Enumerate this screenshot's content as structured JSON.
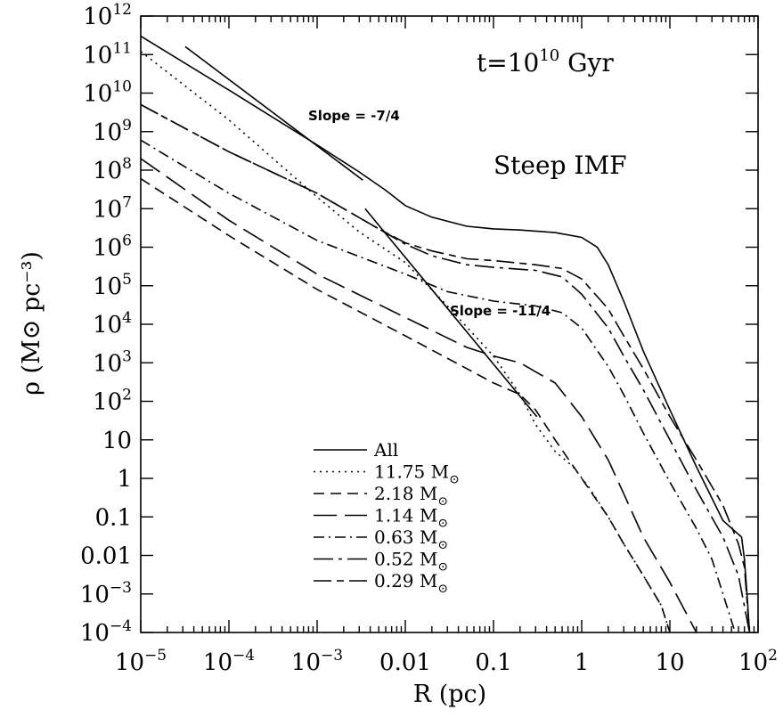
{
  "chart_data": {
    "type": "line",
    "xscale": "log",
    "yscale": "log",
    "xlim": [
      1e-05,
      100
    ],
    "ylim": [
      0.0001,
      1000000000000.0
    ],
    "xlabel": "R (pc)",
    "ylabel": "ρ (M⊙ pc⁻³)",
    "grid": false,
    "legend_position": "bottom-center",
    "xticks": [
      {
        "value": 1e-05,
        "base": "10",
        "exp": "−5"
      },
      {
        "value": 0.0001,
        "base": "10",
        "exp": "−4"
      },
      {
        "value": 0.001,
        "base": "10",
        "exp": "−3"
      },
      {
        "value": 0.01,
        "text": "0.01"
      },
      {
        "value": 0.1,
        "text": "0.1"
      },
      {
        "value": 1,
        "text": "1"
      },
      {
        "value": 10,
        "text": "10"
      },
      {
        "value": 100,
        "base": "10",
        "exp": "2"
      }
    ],
    "yticks": [
      {
        "value": 1000000000000.0,
        "base": "10",
        "exp": "12"
      },
      {
        "value": 100000000000.0,
        "base": "10",
        "exp": "11"
      },
      {
        "value": 10000000000.0,
        "base": "10",
        "exp": "10"
      },
      {
        "value": 1000000000.0,
        "base": "10",
        "exp": "9"
      },
      {
        "value": 100000000.0,
        "base": "10",
        "exp": "8"
      },
      {
        "value": 10000000.0,
        "base": "10",
        "exp": "7"
      },
      {
        "value": 1000000.0,
        "base": "10",
        "exp": "6"
      },
      {
        "value": 100000.0,
        "base": "10",
        "exp": "5"
      },
      {
        "value": 10000.0,
        "base": "10",
        "exp": "4"
      },
      {
        "value": 1000.0,
        "base": "10",
        "exp": "3"
      },
      {
        "value": 100,
        "base": "10",
        "exp": "2"
      },
      {
        "value": 10,
        "text": "10"
      },
      {
        "value": 1,
        "text": "1"
      },
      {
        "value": 0.1,
        "text": "0.1"
      },
      {
        "value": 0.01,
        "text": "0.01"
      },
      {
        "value": 0.001,
        "base": "10",
        "exp": "−3"
      },
      {
        "value": 0.0001,
        "base": "10",
        "exp": "−4"
      }
    ],
    "annotations": {
      "time_prefix": "t=10",
      "time_exp": "10",
      "time_unit": "Gyr",
      "imf_label": "Steep IMF",
      "slope1_label": "Slope = -7/4",
      "slope2_label": "Slope = -11/4"
    },
    "reference_lines": [
      {
        "name": "slope -7/4",
        "points": [
          [
            3.2e-05,
            160000000000.0
          ],
          [
            0.0033,
            55000000.0
          ]
        ]
      },
      {
        "name": "slope -11/4",
        "points": [
          [
            0.0035,
            10000000.0
          ],
          [
            0.31,
            40.0
          ]
        ]
      }
    ],
    "series": [
      {
        "name": "All",
        "dash": "",
        "points": [
          [
            1e-05,
            300000000000.0
          ],
          [
            0.0001,
            12000000000.0
          ],
          [
            0.001,
            450000000.0
          ],
          [
            0.003,
            90000000.0
          ],
          [
            0.006,
            30000000.0
          ],
          [
            0.01,
            12000000.0
          ],
          [
            0.02,
            6000000.0
          ],
          [
            0.05,
            3500000.0
          ],
          [
            0.1,
            3000000.0
          ],
          [
            0.2,
            2800000.0
          ],
          [
            0.5,
            2400000.0
          ],
          [
            1,
            1800000.0
          ],
          [
            1.5,
            1000000.0
          ],
          [
            2,
            350000.0
          ],
          [
            3,
            40000.0
          ],
          [
            5,
            2000.0
          ],
          [
            10,
            60
          ],
          [
            20,
            2
          ],
          [
            40,
            0.08
          ],
          [
            65,
            0.03
          ],
          [
            70,
            0.008
          ],
          [
            75,
            0.001
          ],
          [
            80,
            0.0001
          ]
        ]
      },
      {
        "name": "11.75 M⊙",
        "dash": "2,5",
        "points": [
          [
            1e-05,
            120000000000.0
          ],
          [
            0.0001,
            2000000000.0
          ],
          [
            0.001,
            20000000.0
          ],
          [
            0.003,
            2500000.0
          ],
          [
            0.01,
            400000.0
          ],
          [
            0.03,
            30000.0
          ],
          [
            0.1,
            1500.0
          ],
          [
            0.2,
            150
          ],
          [
            0.3,
            25
          ],
          [
            0.5,
            5
          ],
          [
            0.8,
            2
          ],
          [
            1.2,
            0.6
          ],
          [
            2,
            0.1
          ],
          [
            3,
            0.02
          ],
          [
            5,
            0.003
          ],
          [
            8,
            0.0005
          ],
          [
            10,
            0.0001
          ]
        ]
      },
      {
        "name": "2.18 M⊙",
        "dash": "12,7",
        "points": [
          [
            1e-05,
            60000000.0
          ],
          [
            0.0001,
            2000000.0
          ],
          [
            0.001,
            80000.0
          ],
          [
            0.01,
            5000.0
          ],
          [
            0.05,
            700
          ],
          [
            0.1,
            300
          ],
          [
            0.2,
            150
          ],
          [
            0.3,
            60
          ],
          [
            0.5,
            10
          ],
          [
            1,
            1
          ],
          [
            2,
            0.1
          ],
          [
            3,
            0.02
          ],
          [
            5,
            0.003
          ],
          [
            8,
            0.0005
          ],
          [
            10,
            0.0001
          ]
        ]
      },
      {
        "name": "1.14 M⊙",
        "dash": "26,9",
        "points": [
          [
            1e-05,
            200000000.0
          ],
          [
            0.0001,
            5000000.0
          ],
          [
            0.001,
            200000.0
          ],
          [
            0.01,
            15000.0
          ],
          [
            0.05,
            2500.0
          ],
          [
            0.1,
            1500.0
          ],
          [
            0.2,
            1000.0
          ],
          [
            0.5,
            300
          ],
          [
            1,
            40
          ],
          [
            2,
            3
          ],
          [
            3,
            0.4
          ],
          [
            5,
            0.03
          ],
          [
            10,
            0.002
          ],
          [
            20,
            0.0001
          ]
        ]
      },
      {
        "name": "0.63 M⊙",
        "dash": "12,5,2,5",
        "points": [
          [
            1e-05,
            600000000.0
          ],
          [
            0.0001,
            25000000.0
          ],
          [
            0.001,
            1500000.0
          ],
          [
            0.01,
            200000.0
          ],
          [
            0.03,
            70000.0
          ],
          [
            0.1,
            40000.0
          ],
          [
            0.3,
            30000.0
          ],
          [
            0.6,
            20000.0
          ],
          [
            1,
            8000.0
          ],
          [
            2,
            800
          ],
          [
            3,
            150
          ],
          [
            5,
            15
          ],
          [
            10,
            0.8
          ],
          [
            20,
            0.05
          ],
          [
            30,
            0.008
          ],
          [
            40,
            0.001
          ],
          [
            55,
            0.0001
          ]
        ]
      },
      {
        "name": "0.52 M⊙",
        "dash": "22,6,4,6",
        "points": [
          [
            1e-05,
            5000000000.0
          ],
          [
            0.0001,
            300000000.0
          ],
          [
            0.001,
            25000000.0
          ],
          [
            0.005,
            3000000.0
          ],
          [
            0.01,
            1200000.0
          ],
          [
            0.02,
            600000.0
          ],
          [
            0.05,
            350000.0
          ],
          [
            0.1,
            300000.0
          ],
          [
            0.3,
            250000.0
          ],
          [
            0.6,
            170000.0
          ],
          [
            1,
            60000.0
          ],
          [
            2,
            8000.0
          ],
          [
            3,
            1500.0
          ],
          [
            5,
            200
          ],
          [
            10,
            10
          ],
          [
            20,
            0.5
          ],
          [
            40,
            0.03
          ],
          [
            60,
            0.003
          ],
          [
            80,
            0.0001
          ]
        ]
      },
      {
        "name": "0.29 M⊙",
        "dash": "20,6,8,6",
        "points": [
          [
            1e-05,
            5000000000.0
          ],
          [
            0.0001,
            300000000.0
          ],
          [
            0.001,
            25000000.0
          ],
          [
            0.005,
            3000000.0
          ],
          [
            0.01,
            1300000.0
          ],
          [
            0.02,
            800000.0
          ],
          [
            0.05,
            500000.0
          ],
          [
            0.1,
            450000.0
          ],
          [
            0.3,
            350000.0
          ],
          [
            0.6,
            280000.0
          ],
          [
            1,
            150000.0
          ],
          [
            2,
            25000.0
          ],
          [
            3,
            5000.0
          ],
          [
            5,
            700
          ],
          [
            10,
            40
          ],
          [
            20,
            3
          ],
          [
            40,
            0.2
          ],
          [
            60,
            0.02
          ],
          [
            70,
            0.005
          ],
          [
            80,
            0.0001
          ]
        ]
      }
    ],
    "legend": [
      {
        "label": "All",
        "dash": ""
      },
      {
        "label": "11.75 M",
        "sub": "⊙",
        "dash": "2,5"
      },
      {
        "label": "2.18 M",
        "sub": "⊙",
        "dash": "12,7"
      },
      {
        "label": "1.14 M",
        "sub": "⊙",
        "dash": "26,9"
      },
      {
        "label": "0.63 M",
        "sub": "⊙",
        "dash": "12,5,2,5"
      },
      {
        "label": "0.52 M",
        "sub": "⊙",
        "dash": "22,6,4,6"
      },
      {
        "label": "0.29 M",
        "sub": "⊙",
        "dash": "20,6,8,6"
      }
    ]
  }
}
